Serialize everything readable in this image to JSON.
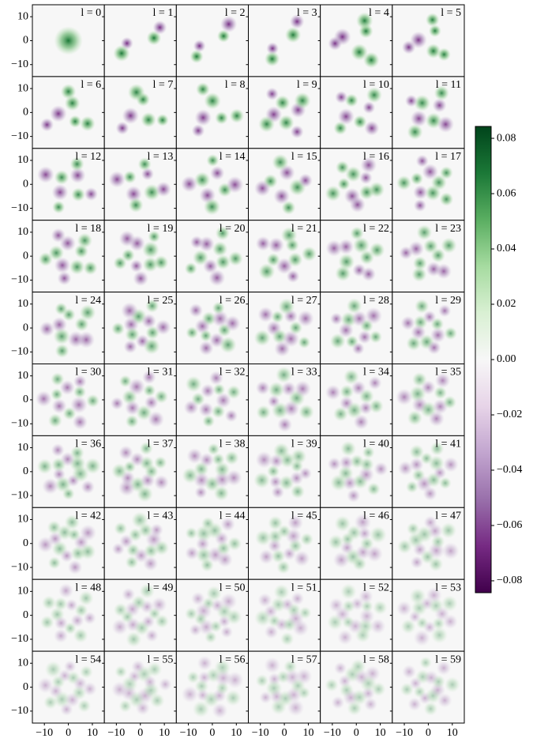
{
  "chart_data": {
    "type": "heatmap-grid",
    "panel_titles": [
      "l = 0",
      "l = 1",
      "l = 2",
      "l = 3",
      "l = 4",
      "l = 5",
      "l = 6",
      "l = 7",
      "l = 8",
      "l = 9",
      "l = 10",
      "l = 11",
      "l = 12",
      "l = 13",
      "l = 14",
      "l = 15",
      "l = 16",
      "l = 17",
      "l = 18",
      "l = 19",
      "l = 20",
      "l = 21",
      "l = 22",
      "l = 23",
      "l = 24",
      "l = 25",
      "l = 26",
      "l = 27",
      "l = 28",
      "l = 29",
      "l = 30",
      "l = 31",
      "l = 32",
      "l = 33",
      "l = 34",
      "l = 35",
      "l = 36",
      "l = 37",
      "l = 38",
      "l = 39",
      "l = 40",
      "l = 41",
      "l = 42",
      "l = 43",
      "l = 44",
      "l = 45",
      "l = 46",
      "l = 47",
      "l = 48",
      "l = 49",
      "l = 50",
      "l = 51",
      "l = 52",
      "l = 53",
      "l = 54",
      "l = 55",
      "l = 56",
      "l = 57",
      "l = 58",
      "l = 59"
    ],
    "xlim": [
      -15,
      15
    ],
    "ylim": [
      -15,
      15
    ],
    "xticks": [
      {
        "value": -10,
        "label": "−10"
      },
      0,
      10
    ],
    "yticks": [
      {
        "value": -10,
        "label": "−10"
      },
      0,
      10
    ],
    "colorbar": {
      "lim": [
        -0.0843,
        0.0843
      ],
      "ticks": [
        {
          "value": -0.08,
          "label": "−0.08"
        },
        {
          "value": -0.06,
          "label": "−0.06"
        },
        {
          "value": -0.04,
          "label": "−0.04"
        },
        {
          "value": -0.02,
          "label": "−0.02"
        },
        {
          "value": 0,
          "label": "0.00"
        },
        0.02,
        0.04,
        0.06,
        0.08
      ],
      "colormap": "PRGn"
    }
  }
}
